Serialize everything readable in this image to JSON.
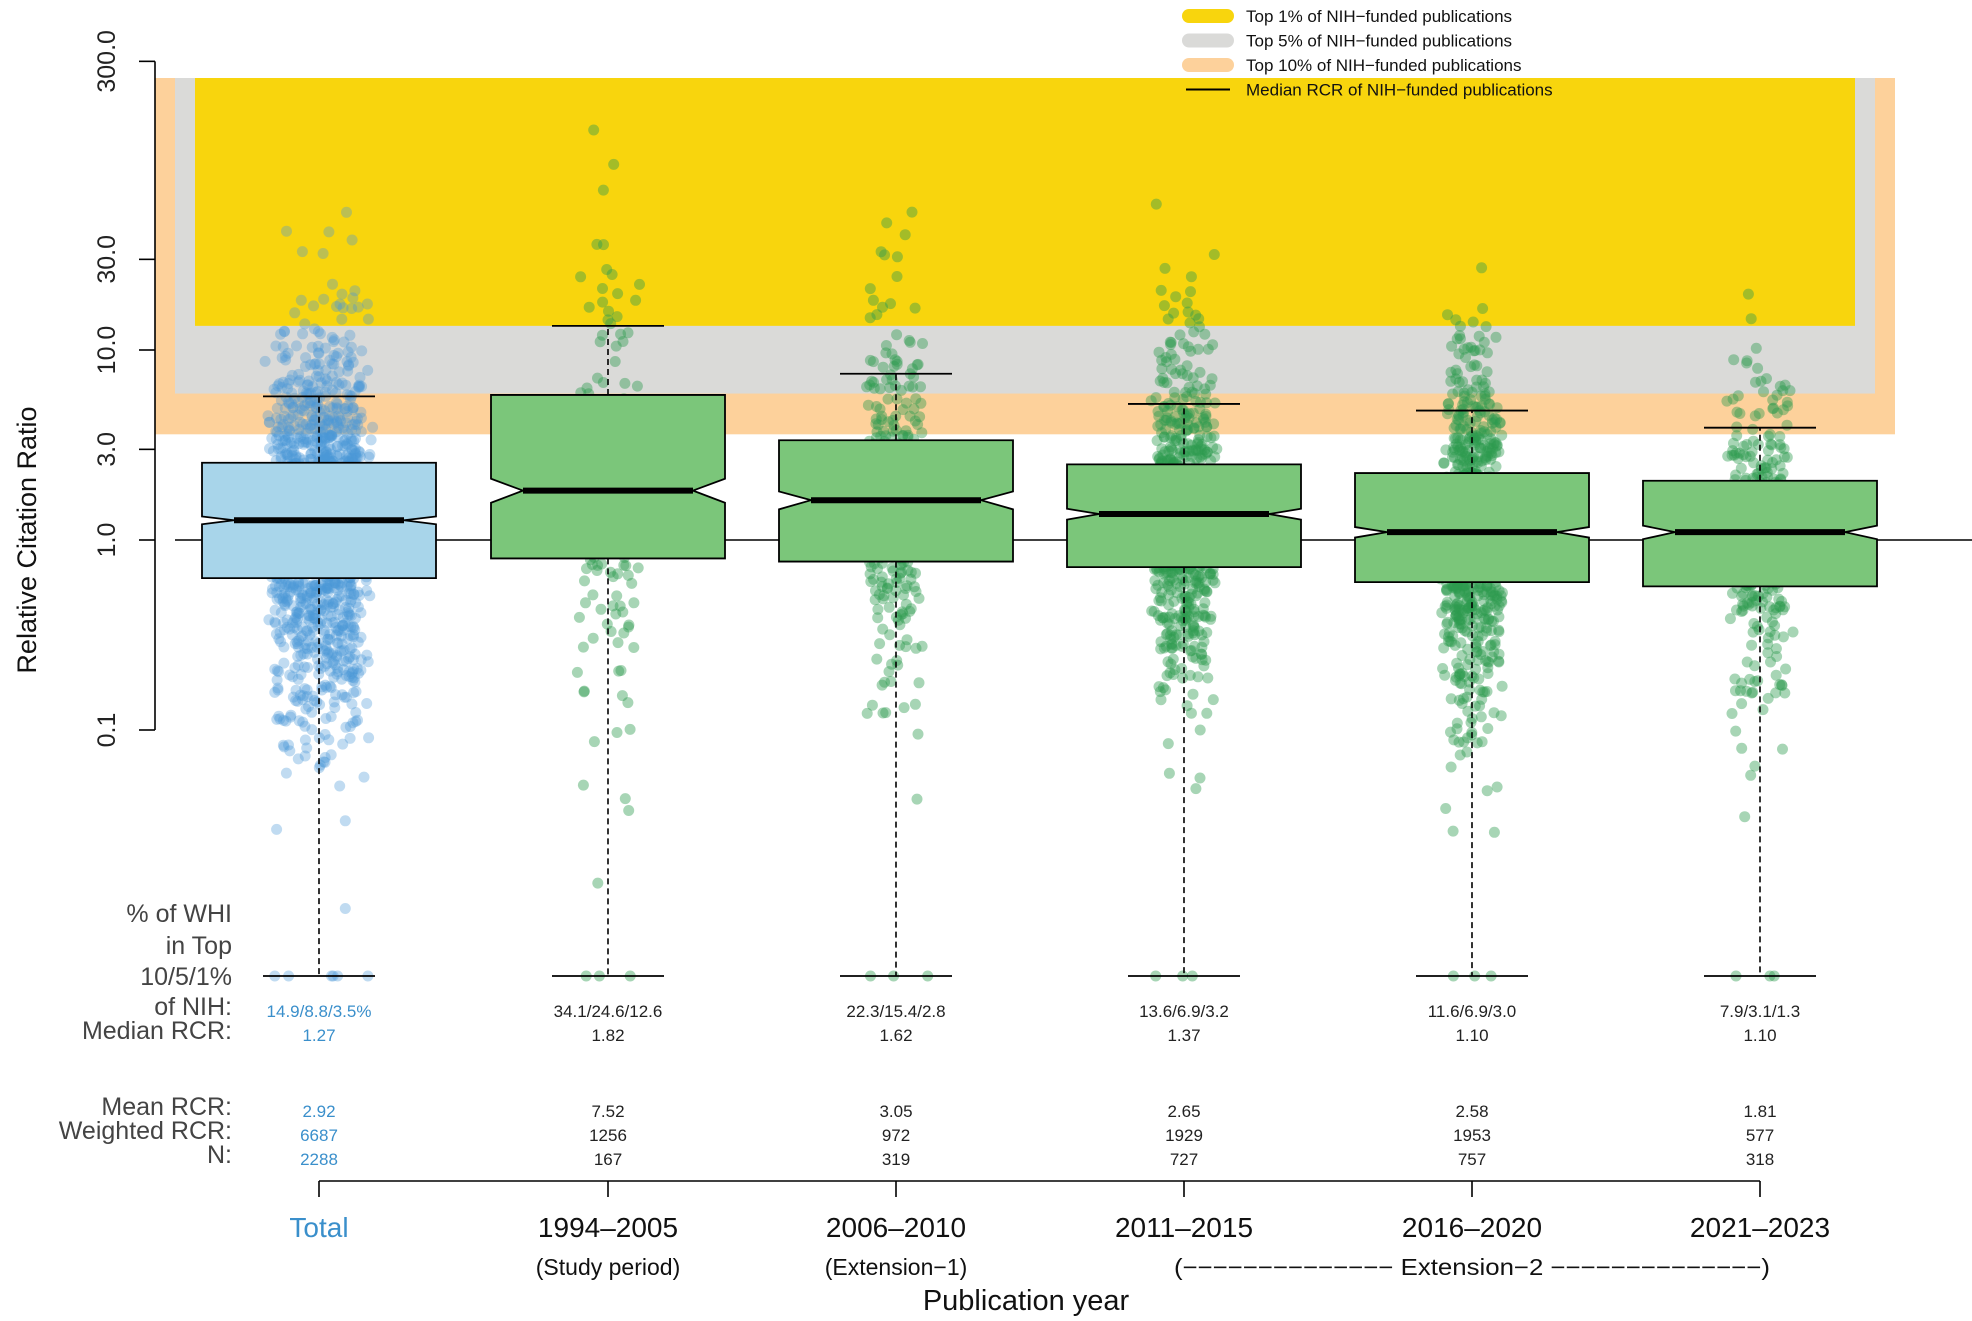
{
  "chart_data": {
    "type": "boxplot",
    "ylabel": "Relative Citation Ratio",
    "xlabel": "Publication year",
    "yscale": "log",
    "ylim": [
      0.1,
      300
    ],
    "yticks": [
      0.1,
      1,
      3,
      10,
      30,
      300
    ],
    "ytick_labels": [
      "0.1",
      "1.0",
      "3.0",
      "10.0",
      "30.0",
      "300.0"
    ],
    "reference_line": {
      "value": 1.0
    },
    "legend": {
      "placement": "top-right",
      "entries": [
        {
          "label": "Top 1% of NIH−funded publications",
          "color": "#f8d50d"
        },
        {
          "label": "Top 5% of NIH−funded publications",
          "color": "#dadad8"
        },
        {
          "label": "Top 10% of NIH−funded publications",
          "color": "#fdd19b"
        },
        {
          "label": "Median RCR of NIH−funded publications",
          "color": "#000000"
        }
      ]
    },
    "bands": [
      {
        "label": "Top 10%",
        "from": 3.6,
        "color": "#fdd19b"
      },
      {
        "label": "Top 5%",
        "from": 5.9,
        "color": "#dadad8"
      },
      {
        "label": "Top 1%",
        "from": 13.4,
        "color": "#f8d50d"
      }
    ],
    "row_labels": {
      "pct_line1": "% of WHI",
      "pct_line2": "in Top",
      "pct_line3": "10/5/1%",
      "pct_line4": "of NIH:",
      "median": "Median RCR:",
      "mean": "Mean RCR:",
      "weighted": "Weighted RCR:",
      "n": "N:"
    },
    "extension2_label": "(−−−−−−−−−−−−−− Extension−2 −−−−−−−−−−−−−−)",
    "groups": [
      {
        "name": "Total",
        "color": "#3a8fcb",
        "box_color": "#a8d5ea",
        "point_color": "#4a98d8",
        "period": "",
        "pct": "14.9/8.8/3.5%",
        "median_label": "1.27",
        "mean": "2.92",
        "weighted": "6687",
        "n": "2288",
        "median": 1.27,
        "q1": 0.63,
        "q3": 2.55,
        "notch_lo": 1.21,
        "notch_hi": 1.33,
        "whisker_lo": 0.0015,
        "whisker_hi": 5.7,
        "npoints": 1400
      },
      {
        "name": "1994–2005",
        "color": "#111111",
        "box_color": "#7bc67a",
        "point_color": "#2e9a4e",
        "period": "(Study period)",
        "pct": "34.1/24.6/12.6",
        "median_label": "1.82",
        "mean": "7.52",
        "weighted": "1256",
        "n": "167",
        "median": 1.82,
        "q1": 0.8,
        "q3": 5.8,
        "notch_lo": 1.57,
        "notch_hi": 2.1,
        "whisker_lo": 0.0015,
        "whisker_hi": 13.4,
        "npoints": 167
      },
      {
        "name": "2006–2010",
        "color": "#111111",
        "box_color": "#7bc67a",
        "point_color": "#2e9a4e",
        "period": "(Extension−1)",
        "pct": "22.3/15.4/2.8",
        "median_label": "1.62",
        "mean": "3.05",
        "weighted": "972",
        "n": "319",
        "median": 1.62,
        "q1": 0.77,
        "q3": 3.35,
        "notch_lo": 1.45,
        "notch_hi": 1.8,
        "whisker_lo": 0.0015,
        "whisker_hi": 7.5,
        "npoints": 319
      },
      {
        "name": "2011–2015",
        "color": "#111111",
        "box_color": "#7bc67a",
        "point_color": "#2e9a4e",
        "period": "",
        "pct": "13.6/6.9/3.2",
        "median_label": "1.37",
        "mean": "2.65",
        "weighted": "1929",
        "n": "727",
        "median": 1.37,
        "q1": 0.72,
        "q3": 2.5,
        "notch_lo": 1.28,
        "notch_hi": 1.46,
        "whisker_lo": 0.0015,
        "whisker_hi": 5.2,
        "npoints": 727
      },
      {
        "name": "2016–2020",
        "color": "#111111",
        "box_color": "#7bc67a",
        "point_color": "#2e9a4e",
        "period": "",
        "pct": "11.6/6.9/3.0",
        "median_label": "1.10",
        "mean": "2.58",
        "weighted": "1953",
        "n": "757",
        "median": 1.1,
        "q1": 0.6,
        "q3": 2.25,
        "notch_lo": 1.03,
        "notch_hi": 1.17,
        "whisker_lo": 0.0015,
        "whisker_hi": 4.8,
        "npoints": 757
      },
      {
        "name": "2021–2023",
        "color": "#111111",
        "box_color": "#7bc67a",
        "point_color": "#2e9a4e",
        "period": "",
        "pct": "7.9/3.1/1.3",
        "median_label": "1.10",
        "mean": "1.81",
        "weighted": "577",
        "n": "318",
        "median": 1.1,
        "q1": 0.57,
        "q3": 2.05,
        "notch_lo": 1.01,
        "notch_hi": 1.19,
        "whisker_lo": 0.0015,
        "whisker_hi": 3.9,
        "npoints": 318
      }
    ]
  }
}
